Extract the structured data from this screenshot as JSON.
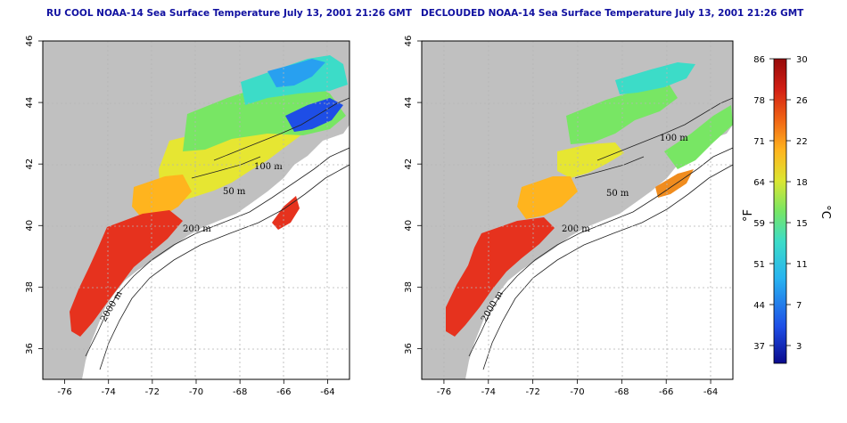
{
  "titles": {
    "left": "RU COOL NOAA-14 Sea Surface Temperature July 13, 2001 21:26 GMT",
    "right": "DECLOUDED NOAA-14 Sea Surface Temperature July 13, 2001 21:26 GMT"
  },
  "axes": {
    "lon_ticks": [
      "-76",
      "-74",
      "-72",
      "-70",
      "-68",
      "-66",
      "-64"
    ],
    "lat_ticks": [
      "46",
      "44",
      "42",
      "40",
      "38",
      "36"
    ],
    "lon_range": [
      -77.0,
      -63.0
    ],
    "lat_range": [
      35.0,
      46.0
    ]
  },
  "isobaths": {
    "left": [
      "50 m",
      "100 m",
      "200 m",
      "2000 m"
    ],
    "right": [
      "50 m",
      "100 m",
      "200 m",
      "2000 m"
    ]
  },
  "colorbar": {
    "fahrenheit_labels": [
      "86",
      "78",
      "71",
      "64",
      "59",
      "51",
      "44",
      "37"
    ],
    "celsius_labels": [
      "30",
      "26",
      "22",
      "18",
      "15",
      "11",
      "7",
      "3"
    ],
    "fahrenheit_unit": "°F",
    "celsius_unit": "°C",
    "range_c": [
      0,
      30
    ],
    "colors": [
      "#0a0a8c",
      "#1e4ee6",
      "#28b4f0",
      "#3cdcc8",
      "#78e664",
      "#dce632",
      "#ffb41e",
      "#f06414",
      "#d21e14",
      "#960a0a"
    ]
  },
  "colors": {
    "land": "#c0c0c0",
    "water_nodata": "#ffffff",
    "title": "#1010a0",
    "grid": "#b4b4b4"
  }
}
